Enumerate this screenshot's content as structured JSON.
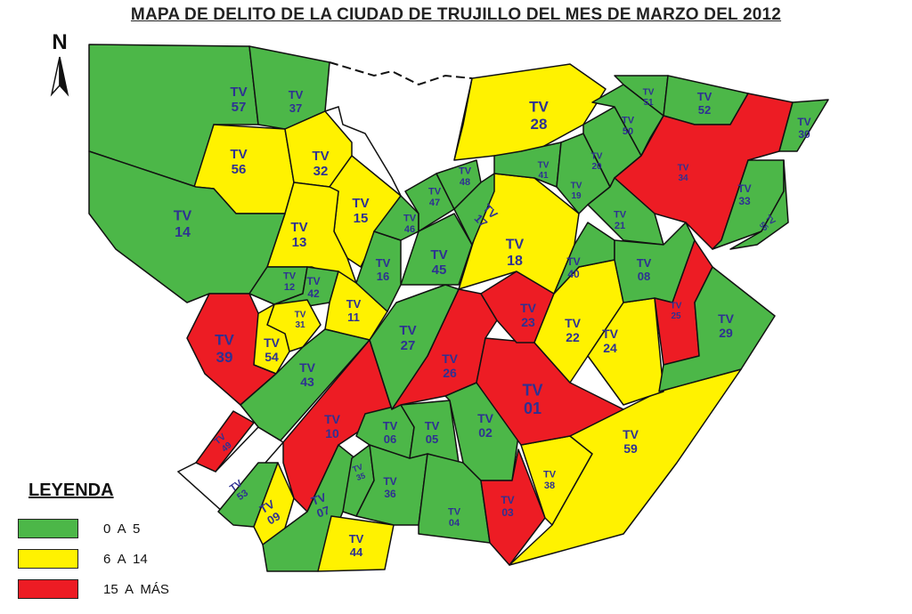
{
  "title": "MAPA DE DELITO DE LA CIUDAD DE TRUJILLO DEL MES DE MARZO DEL 2012",
  "north_label": "N",
  "legend": {
    "title": "LEYENDA",
    "items": [
      {
        "key": "green",
        "label": "0  A  5",
        "color": "#4cb748"
      },
      {
        "key": "yellow",
        "label": "6  A  14",
        "color": "#fff200"
      },
      {
        "key": "red",
        "label": "15  A  MÁS",
        "color": "#ed1c24"
      }
    ]
  },
  "label_color": "#2e3192",
  "districts": [
    {
      "prefix": "TV",
      "number": "57",
      "category": "green"
    },
    {
      "prefix": "TV",
      "number": "37",
      "category": "green"
    },
    {
      "prefix": "TV",
      "number": "56",
      "category": "yellow"
    },
    {
      "prefix": "TV",
      "number": "32",
      "category": "yellow"
    },
    {
      "prefix": "TV",
      "number": "15",
      "category": "yellow"
    },
    {
      "prefix": "TV",
      "number": "13",
      "category": "yellow"
    },
    {
      "prefix": "TV",
      "number": "14",
      "category": "green"
    },
    {
      "prefix": "TV",
      "number": "12",
      "category": "green"
    },
    {
      "prefix": "TV",
      "number": "42",
      "category": "green"
    },
    {
      "prefix": "TV",
      "number": "11",
      "category": "yellow"
    },
    {
      "prefix": "TV",
      "number": "31",
      "category": "yellow"
    },
    {
      "prefix": "TV",
      "number": "54",
      "category": "yellow"
    },
    {
      "prefix": "TV",
      "number": "39",
      "category": "red"
    },
    {
      "prefix": "TV",
      "number": "43",
      "category": "green"
    },
    {
      "prefix": "TV",
      "number": "49",
      "category": "red"
    },
    {
      "prefix": "TV",
      "number": "53",
      "category": "green"
    },
    {
      "prefix": "TV",
      "number": "09",
      "category": "yellow"
    },
    {
      "prefix": "TV",
      "number": "10",
      "category": "red"
    },
    {
      "prefix": "TV",
      "number": "07",
      "category": "green"
    },
    {
      "prefix": "TV",
      "number": "44",
      "category": "yellow"
    },
    {
      "prefix": "TV",
      "number": "35",
      "category": "green"
    },
    {
      "prefix": "TV",
      "number": "36",
      "category": "green"
    },
    {
      "prefix": "TV",
      "number": "06",
      "category": "green"
    },
    {
      "prefix": "TV",
      "number": "05",
      "category": "green"
    },
    {
      "prefix": "TV",
      "number": "04",
      "category": "green"
    },
    {
      "prefix": "TV",
      "number": "02",
      "category": "green"
    },
    {
      "prefix": "TV",
      "number": "03",
      "category": "red"
    },
    {
      "prefix": "TV",
      "number": "38",
      "category": "yellow"
    },
    {
      "prefix": "TV",
      "number": "59",
      "category": "yellow"
    },
    {
      "prefix": "TV",
      "number": "26",
      "category": "red"
    },
    {
      "prefix": "TV",
      "number": "27",
      "category": "green"
    },
    {
      "prefix": "TV",
      "number": "01",
      "category": "red"
    },
    {
      "prefix": "TV",
      "number": "23",
      "category": "red"
    },
    {
      "prefix": "TV",
      "number": "22",
      "category": "yellow"
    },
    {
      "prefix": "TV",
      "number": "24",
      "category": "yellow"
    },
    {
      "prefix": "TV",
      "number": "18",
      "category": "yellow"
    },
    {
      "prefix": "TV",
      "number": "45",
      "category": "green"
    },
    {
      "prefix": "TV",
      "number": "16",
      "category": "green"
    },
    {
      "prefix": "TV",
      "number": "46",
      "category": "green"
    },
    {
      "prefix": "TV",
      "number": "47",
      "category": "green"
    },
    {
      "prefix": "TV",
      "number": "48",
      "category": "green"
    },
    {
      "prefix": "TV",
      "number": "17",
      "category": "green"
    },
    {
      "prefix": "TV",
      "number": "28",
      "category": "yellow"
    },
    {
      "prefix": "TV",
      "number": "41",
      "category": "green"
    },
    {
      "prefix": "TV",
      "number": "19",
      "category": "green"
    },
    {
      "prefix": "TV",
      "number": "20",
      "category": "green"
    },
    {
      "prefix": "TV",
      "number": "50",
      "category": "green"
    },
    {
      "prefix": "TV",
      "number": "51",
      "category": "green"
    },
    {
      "prefix": "TV",
      "number": "52",
      "category": "green"
    },
    {
      "prefix": "TV",
      "number": "34",
      "category": "red"
    },
    {
      "prefix": "TV",
      "number": "30",
      "category": "green"
    },
    {
      "prefix": "TV",
      "number": "33",
      "category": "green"
    },
    {
      "prefix": "TV",
      "number": "55",
      "category": "green"
    },
    {
      "prefix": "TV",
      "number": "21",
      "category": "green"
    },
    {
      "prefix": "TV",
      "number": "40",
      "category": "green"
    },
    {
      "prefix": "TV",
      "number": "08",
      "category": "green"
    },
    {
      "prefix": "TV",
      "number": "25",
      "category": "red"
    },
    {
      "prefix": "TV",
      "number": "29",
      "category": "green"
    }
  ]
}
